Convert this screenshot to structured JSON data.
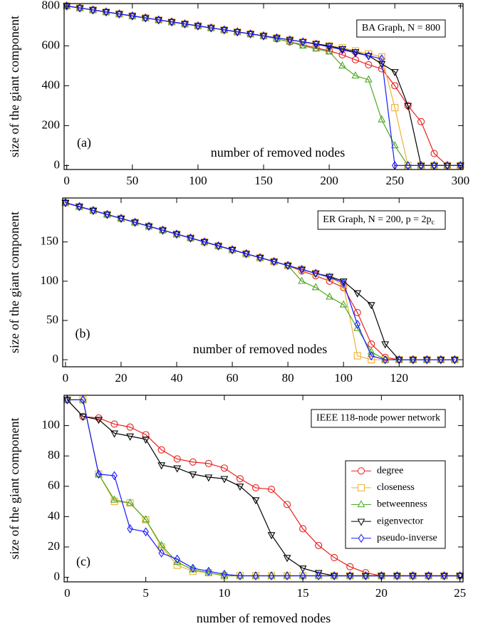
{
  "chart_data": [
    {
      "type": "line",
      "panel_label": "(a)",
      "annotation": "BA Graph, N = 800",
      "x_label": "number of removed nodes",
      "y_label": "size of the giant component",
      "xlim": [
        -2,
        302
      ],
      "ylim": [
        -20,
        812
      ],
      "xticks": [
        0,
        50,
        100,
        150,
        200,
        250,
        300
      ],
      "yticks": [
        0,
        200,
        400,
        600,
        800
      ],
      "x": [
        0,
        10,
        20,
        30,
        40,
        50,
        60,
        70,
        80,
        90,
        100,
        110,
        120,
        130,
        140,
        150,
        160,
        170,
        180,
        190,
        200,
        210,
        220,
        230,
        240,
        250,
        260,
        270,
        280,
        290,
        300
      ],
      "series": [
        {
          "color": "#e8211d",
          "marker": "circle",
          "values": [
            800,
            790,
            780,
            770,
            760,
            750,
            740,
            730,
            720,
            710,
            700,
            690,
            680,
            670,
            660,
            650,
            635,
            620,
            605,
            590,
            575,
            555,
            530,
            505,
            485,
            400,
            300,
            220,
            60,
            0,
            0
          ]
        },
        {
          "color": "#f2b134",
          "marker": "square",
          "values": [
            800,
            790,
            780,
            770,
            760,
            750,
            740,
            730,
            720,
            710,
            700,
            690,
            680,
            670,
            660,
            650,
            640,
            630,
            620,
            610,
            600,
            590,
            575,
            560,
            545,
            290,
            0,
            0,
            0,
            0,
            0
          ]
        },
        {
          "color": "#4ea825",
          "marker": "triangle-up",
          "values": [
            800,
            790,
            780,
            770,
            760,
            750,
            740,
            730,
            720,
            710,
            700,
            690,
            680,
            670,
            660,
            650,
            635,
            620,
            600,
            585,
            570,
            500,
            450,
            430,
            230,
            100,
            0,
            0,
            0,
            0,
            0
          ]
        },
        {
          "color": "#000000",
          "marker": "triangle-down",
          "values": [
            800,
            790,
            780,
            770,
            760,
            750,
            740,
            730,
            720,
            710,
            700,
            690,
            680,
            670,
            660,
            650,
            640,
            630,
            620,
            610,
            600,
            585,
            570,
            550,
            510,
            470,
            300,
            0,
            0,
            0,
            0
          ]
        },
        {
          "color": "#1a1aff",
          "marker": "diamond",
          "values": [
            800,
            790,
            780,
            770,
            760,
            750,
            740,
            730,
            720,
            710,
            700,
            690,
            680,
            670,
            660,
            650,
            640,
            630,
            620,
            608,
            595,
            580,
            565,
            550,
            535,
            0,
            0,
            0,
            0,
            0,
            0
          ]
        }
      ]
    },
    {
      "type": "line",
      "panel_label": "(b)",
      "annotation": "ER Graph, N = 200, p = 2p",
      "annotation_subscript": "c",
      "x_label": "number of removed nodes",
      "y_label": "size of the giant component",
      "xlim": [
        -1,
        143
      ],
      "ylim": [
        -9,
        206
      ],
      "xticks": [
        0,
        20,
        40,
        60,
        80,
        100,
        120
      ],
      "yticks": [
        0,
        50,
        100,
        150
      ],
      "x": [
        0,
        5,
        10,
        15,
        20,
        25,
        30,
        35,
        40,
        45,
        50,
        55,
        60,
        65,
        70,
        75,
        80,
        85,
        90,
        95,
        100,
        105,
        110,
        115,
        120,
        125,
        130,
        135,
        140
      ],
      "series": [
        {
          "color": "#e8211d",
          "marker": "circle",
          "values": [
            200,
            195,
            190,
            185,
            180,
            175,
            170,
            165,
            160,
            155,
            150,
            145,
            140,
            135,
            130,
            125,
            120,
            113,
            107,
            100,
            92,
            60,
            20,
            3,
            0,
            0,
            0,
            0,
            0
          ]
        },
        {
          "color": "#f2b134",
          "marker": "square",
          "values": [
            200,
            195,
            190,
            185,
            180,
            175,
            170,
            165,
            160,
            155,
            150,
            145,
            140,
            135,
            130,
            125,
            120,
            115,
            110,
            105,
            95,
            5,
            0,
            0,
            0,
            0,
            0,
            0,
            0
          ]
        },
        {
          "color": "#4ea825",
          "marker": "triangle-up",
          "values": [
            200,
            195,
            190,
            185,
            180,
            175,
            170,
            165,
            160,
            155,
            150,
            145,
            140,
            135,
            130,
            125,
            120,
            100,
            92,
            80,
            70,
            40,
            10,
            0,
            0,
            0,
            0,
            0,
            0
          ]
        },
        {
          "color": "#000000",
          "marker": "triangle-down",
          "values": [
            200,
            195,
            190,
            185,
            180,
            175,
            170,
            165,
            160,
            155,
            150,
            145,
            140,
            135,
            130,
            125,
            120,
            115,
            110,
            106,
            100,
            85,
            70,
            20,
            0,
            0,
            0,
            0,
            0
          ]
        },
        {
          "color": "#1a1aff",
          "marker": "diamond",
          "values": [
            200,
            195,
            190,
            185,
            180,
            175,
            170,
            165,
            160,
            155,
            150,
            145,
            140,
            135,
            130,
            125,
            120,
            115,
            110,
            105,
            98,
            45,
            5,
            0,
            0,
            0,
            0,
            0,
            0
          ]
        }
      ]
    },
    {
      "type": "line",
      "panel_label": "(c)",
      "annotation": "IEEE 118-node power network",
      "x_label": "number of removed nodes",
      "y_label": "size of the giant component",
      "xlim": [
        -0.2,
        25.2
      ],
      "ylim": [
        -3,
        120
      ],
      "xticks": [
        0,
        5,
        10,
        15,
        20,
        25
      ],
      "yticks": [
        0,
        20,
        40,
        60,
        80,
        100
      ],
      "legend": "right",
      "x": [
        0,
        1,
        2,
        3,
        4,
        5,
        6,
        7,
        8,
        9,
        10,
        11,
        12,
        13,
        14,
        15,
        16,
        17,
        18,
        19,
        20,
        21,
        22,
        23,
        24,
        25
      ],
      "series": [
        {
          "name": "degree",
          "color": "#e8211d",
          "marker": "circle",
          "values": [
            117,
            106,
            105,
            101,
            99,
            94,
            84,
            78,
            76,
            75,
            72,
            65,
            59,
            58,
            48,
            32,
            21,
            13,
            7,
            3,
            1,
            1,
            1,
            1,
            1,
            1
          ]
        },
        {
          "name": "closeness",
          "color": "#f2b134",
          "marker": "square",
          "values": [
            117,
            117,
            68,
            50,
            49,
            38,
            20,
            8,
            4,
            3,
            1,
            1,
            1,
            1,
            1,
            1,
            1,
            1,
            1,
            1,
            1,
            1,
            1,
            1,
            1,
            1
          ]
        },
        {
          "name": "betweenness",
          "color": "#4ea825",
          "marker": "triangle-up",
          "values": [
            117,
            117,
            68,
            51,
            49,
            38,
            21,
            10,
            5,
            3,
            1,
            1,
            1,
            1,
            1,
            1,
            1,
            1,
            1,
            1,
            1,
            1,
            1,
            1,
            1,
            1
          ]
        },
        {
          "name": "eigenvector",
          "color": "#000000",
          "marker": "triangle-down",
          "values": [
            117,
            106,
            104,
            95,
            93,
            91,
            74,
            72,
            68,
            66,
            65,
            60,
            51,
            28,
            13,
            6,
            3,
            1,
            1,
            1,
            1,
            1,
            1,
            1,
            1,
            1
          ]
        },
        {
          "name": "pseudo-inverse",
          "color": "#1a1aff",
          "marker": "diamond",
          "values": [
            117,
            117,
            68,
            67,
            32,
            30,
            16,
            12,
            6,
            4,
            2,
            1,
            1,
            1,
            1,
            1,
            1,
            1,
            1,
            1,
            1,
            1,
            1,
            1,
            1,
            1
          ]
        }
      ]
    }
  ]
}
